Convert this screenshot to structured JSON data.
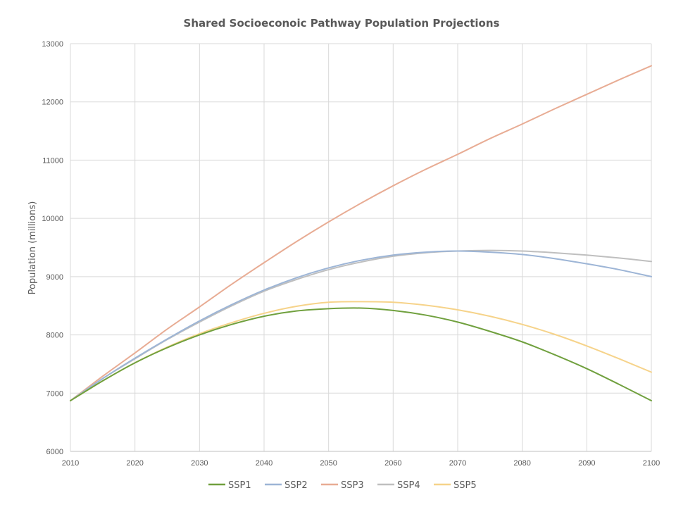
{
  "chart_data": {
    "type": "line",
    "title": "Shared Socioeconoic Pathway Population Projections",
    "xlabel": "",
    "ylabel": "Population (millions)",
    "xlim": [
      2010,
      2100
    ],
    "ylim": [
      6000,
      13000
    ],
    "x_ticks": [
      2010,
      2020,
      2030,
      2040,
      2050,
      2060,
      2070,
      2080,
      2090,
      2100
    ],
    "y_ticks": [
      6000,
      7000,
      8000,
      9000,
      10000,
      11000,
      12000,
      13000
    ],
    "grid": true,
    "legend_position": "bottom",
    "x": [
      2010,
      2015,
      2020,
      2025,
      2030,
      2035,
      2040,
      2045,
      2050,
      2055,
      2060,
      2065,
      2070,
      2075,
      2080,
      2085,
      2090,
      2095,
      2100
    ],
    "series": [
      {
        "name": "SSP1",
        "color": "#70a03e",
        "values": [
          6870,
          7210,
          7520,
          7780,
          8000,
          8180,
          8320,
          8410,
          8450,
          8460,
          8420,
          8340,
          8220,
          8060,
          7880,
          7660,
          7420,
          7150,
          6870
        ]
      },
      {
        "name": "SSP2",
        "color": "#9db5d6",
        "values": [
          6870,
          7250,
          7600,
          7930,
          8240,
          8520,
          8770,
          8980,
          9150,
          9280,
          9370,
          9420,
          9440,
          9420,
          9380,
          9310,
          9220,
          9120,
          9000
        ]
      },
      {
        "name": "SSP3",
        "color": "#e8ac94",
        "values": [
          6870,
          7290,
          7690,
          8100,
          8480,
          8870,
          9240,
          9600,
          9940,
          10260,
          10560,
          10840,
          11100,
          11370,
          11620,
          11880,
          12130,
          12380,
          12620
        ]
      },
      {
        "name": "SSP4",
        "color": "#bfbfbf",
        "values": [
          6870,
          7250,
          7590,
          7920,
          8220,
          8500,
          8750,
          8950,
          9120,
          9250,
          9350,
          9410,
          9440,
          9450,
          9440,
          9410,
          9370,
          9320,
          9260
        ]
      },
      {
        "name": "SSP5",
        "color": "#f6d38a",
        "values": [
          6870,
          7210,
          7520,
          7790,
          8020,
          8210,
          8370,
          8490,
          8560,
          8570,
          8560,
          8510,
          8430,
          8320,
          8180,
          8010,
          7810,
          7590,
          7360
        ]
      }
    ]
  }
}
